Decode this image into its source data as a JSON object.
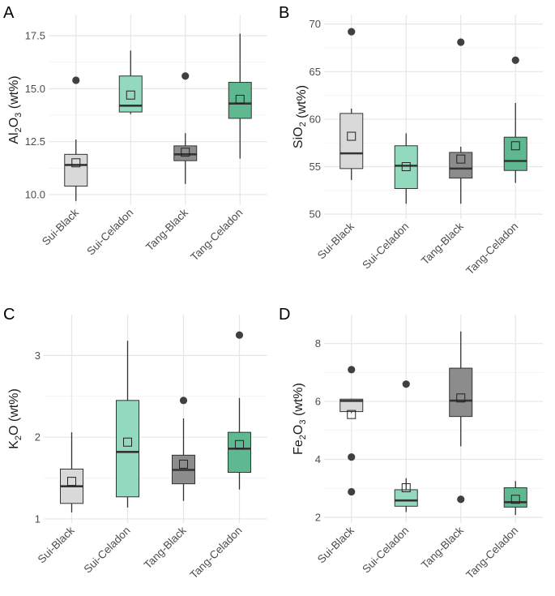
{
  "chart_data": [
    {
      "type": "box",
      "panel_label": "A",
      "ylabel_parts": [
        "Al",
        "2",
        "O",
        "3",
        " (wt%)"
      ],
      "ylim": [
        9.5,
        18.5
      ],
      "yticks": [
        10.0,
        12.5,
        15.0,
        17.5
      ],
      "ytick_labels": [
        "10.0",
        "12.5",
        "15.0",
        "17.5"
      ],
      "categories": [
        "Sui-Black",
        "Sui-Celadon",
        "Tang-Black",
        "Tang-Celadon"
      ],
      "boxes": [
        {
          "whisker_low": 9.7,
          "q1": 10.4,
          "median": 11.4,
          "q3": 11.9,
          "whisker_high": 12.6,
          "mean": 11.5,
          "outliers": [
            15.4
          ]
        },
        {
          "whisker_low": 13.8,
          "q1": 13.9,
          "median": 14.2,
          "q3": 15.6,
          "whisker_high": 16.8,
          "mean": 14.7,
          "outliers": []
        },
        {
          "whisker_low": 10.5,
          "q1": 11.6,
          "median": 11.9,
          "q3": 12.3,
          "whisker_high": 12.9,
          "mean": 12.0,
          "outliers": [
            15.6
          ]
        },
        {
          "whisker_low": 11.7,
          "q1": 13.6,
          "median": 14.3,
          "q3": 15.3,
          "whisker_high": 17.6,
          "mean": 14.5,
          "outliers": []
        }
      ]
    },
    {
      "type": "box",
      "panel_label": "B",
      "ylabel_parts": [
        "SiO",
        "2",
        "",
        "",
        " (wt%)"
      ],
      "ylim": [
        49.5,
        71.0
      ],
      "yticks": [
        50,
        55,
        60,
        65,
        70
      ],
      "ytick_labels": [
        "50",
        "55",
        "60",
        "65",
        "70"
      ],
      "categories": [
        "Sui-Black",
        "Sui-Celadon",
        "Tang-Black",
        "Tang-Celadon"
      ],
      "boxes": [
        {
          "whisker_low": 53.6,
          "q1": 54.8,
          "median": 56.4,
          "q3": 60.6,
          "whisker_high": 61.1,
          "mean": 58.2,
          "outliers": [
            69.2
          ]
        },
        {
          "whisker_low": 51.1,
          "q1": 52.7,
          "median": 55.1,
          "q3": 57.2,
          "whisker_high": 58.5,
          "mean": 55.0,
          "outliers": []
        },
        {
          "whisker_low": 51.1,
          "q1": 53.8,
          "median": 54.8,
          "q3": 56.5,
          "whisker_high": 57.1,
          "mean": 55.8,
          "outliers": [
            68.1
          ]
        },
        {
          "whisker_low": 53.3,
          "q1": 54.6,
          "median": 55.6,
          "q3": 58.1,
          "whisker_high": 61.7,
          "mean": 57.2,
          "outliers": [
            66.2
          ]
        }
      ]
    },
    {
      "type": "box",
      "panel_label": "C",
      "ylabel_parts": [
        "K",
        "2",
        "O",
        "",
        " (wt%)"
      ],
      "ylim": [
        0.95,
        3.5
      ],
      "yticks": [
        1,
        2,
        3
      ],
      "ytick_labels": [
        "1",
        "2",
        "3"
      ],
      "categories": [
        "Sui-Black",
        "Sui-Celadon",
        "Tang-Black",
        "Tang-Celadon"
      ],
      "boxes": [
        {
          "whisker_low": 1.08,
          "q1": 1.19,
          "median": 1.4,
          "q3": 1.61,
          "whisker_high": 2.06,
          "mean": 1.46,
          "outliers": []
        },
        {
          "whisker_low": 1.14,
          "q1": 1.27,
          "median": 1.82,
          "q3": 2.45,
          "whisker_high": 3.18,
          "mean": 1.94,
          "outliers": []
        },
        {
          "whisker_low": 1.22,
          "q1": 1.43,
          "median": 1.6,
          "q3": 1.78,
          "whisker_high": 2.23,
          "mean": 1.67,
          "outliers": [
            2.45
          ]
        },
        {
          "whisker_low": 1.36,
          "q1": 1.57,
          "median": 1.86,
          "q3": 2.06,
          "whisker_high": 2.48,
          "mean": 1.91,
          "outliers": [
            3.25
          ]
        }
      ]
    },
    {
      "type": "box",
      "panel_label": "D",
      "ylabel_parts": [
        "Fe",
        "2",
        "O",
        "3",
        " (wt%)"
      ],
      "ylim": [
        1.8,
        9.0
      ],
      "yticks": [
        2,
        4,
        6,
        8
      ],
      "ytick_labels": [
        "2",
        "4",
        "6",
        "8"
      ],
      "categories": [
        "Sui-Black",
        "Sui-Celadon",
        "Tang-Black",
        "Tang-Celadon"
      ],
      "boxes": [
        {
          "whisker_low": 5.6,
          "q1": 5.65,
          "median": 6.02,
          "q3": 6.08,
          "whisker_high": 6.1,
          "mean": 5.55,
          "outliers": [
            7.1,
            4.08,
            2.88
          ]
        },
        {
          "whisker_low": 2.18,
          "q1": 2.38,
          "median": 2.58,
          "q3": 2.95,
          "whisker_high": 3.35,
          "mean": 3.02,
          "outliers": [
            6.6
          ]
        },
        {
          "whisker_low": 4.45,
          "q1": 5.48,
          "median": 6.03,
          "q3": 7.15,
          "whisker_high": 8.42,
          "mean": 6.12,
          "outliers": [
            2.62
          ]
        },
        {
          "whisker_low": 2.08,
          "q1": 2.35,
          "median": 2.52,
          "q3": 3.02,
          "whisker_high": 3.25,
          "mean": 2.62,
          "outliers": []
        }
      ]
    }
  ],
  "colors": {
    "sui_black": "#d9d9d9",
    "sui_celadon": "#93d9bd",
    "tang_black": "#8c8c8c",
    "tang_celadon": "#5eb890"
  }
}
